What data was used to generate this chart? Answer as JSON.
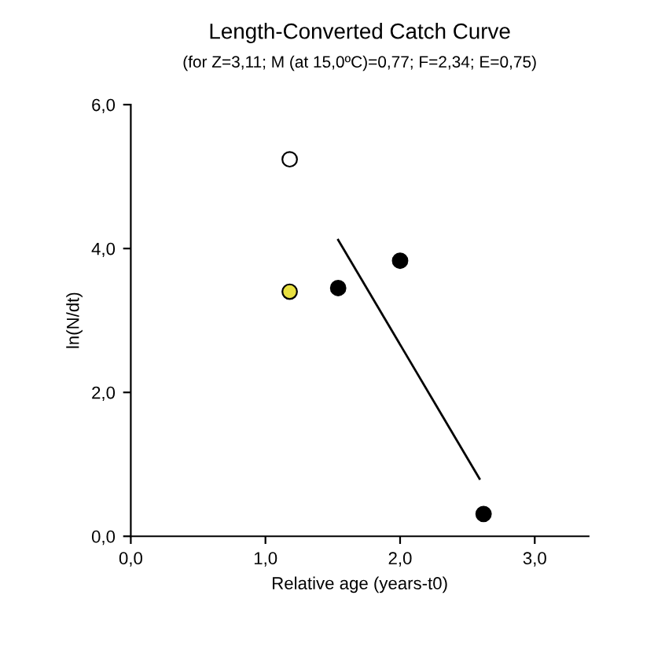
{
  "chart_data": {
    "type": "scatter",
    "title": "Length-Converted Catch Curve",
    "subtitle": "(for Z=3,11; M (at 15,0ºC)=0,77; F=2,34; E=0,75)",
    "xlabel": "Relative age (years-t0)",
    "ylabel": "ln(N/dt)",
    "xlim": [
      0,
      3.4
    ],
    "ylim": [
      0,
      6
    ],
    "xticks": [
      {
        "value": 0,
        "label": "0,0"
      },
      {
        "value": 1,
        "label": "1,0"
      },
      {
        "value": 2,
        "label": "2,0"
      },
      {
        "value": 3,
        "label": "3,0"
      }
    ],
    "yticks": [
      {
        "value": 0,
        "label": "0,0"
      },
      {
        "value": 2,
        "label": "2,0"
      },
      {
        "value": 4,
        "label": "4,0"
      },
      {
        "value": 6,
        "label": "6,0"
      }
    ],
    "grid": false,
    "marker": "circle",
    "series": [
      {
        "color": "#ffffff",
        "x": [
          1.18
        ],
        "values": [
          5.24
        ]
      },
      {
        "color": "#e8e040",
        "x": [
          1.18
        ],
        "values": [
          3.4
        ]
      },
      {
        "color": "#000000",
        "x": [
          1.54,
          2.0,
          2.62
        ],
        "values": [
          3.45,
          3.83,
          0.31
        ]
      },
      {
        "type": "line",
        "color": "#000000",
        "x": [
          1.54,
          2.59
        ],
        "values": [
          4.12,
          0.8
        ],
        "marker": "none",
        "line_style": "solid"
      }
    ]
  }
}
